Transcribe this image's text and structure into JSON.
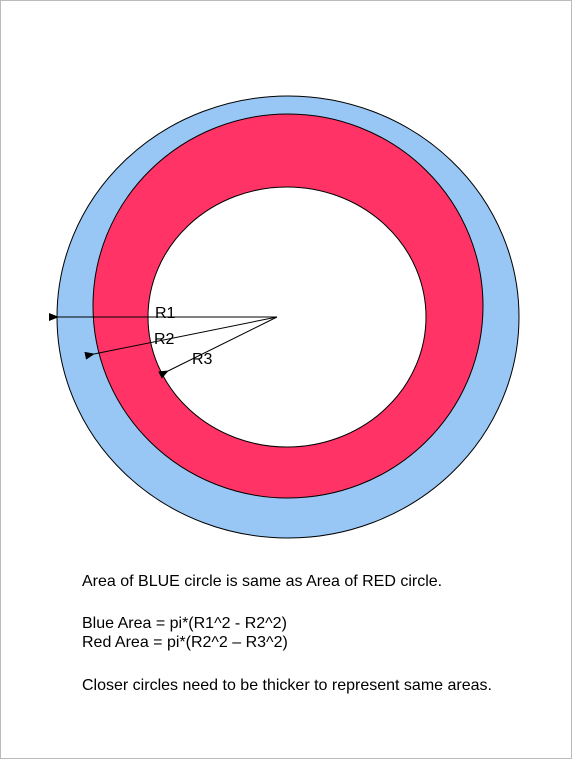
{
  "labels": [
    "R1",
    "R2",
    "R3"
  ],
  "text": {
    "statement": "Area of BLUE circle is same as Area of RED circle.",
    "blue_formula": "Blue Area = pi*(R1^2 - R2^2)",
    "red_formula": "Red Area = pi*(R2^2 – R3^2)",
    "conclusion": "Closer circles need to be thicker to represent same areas."
  }
}
